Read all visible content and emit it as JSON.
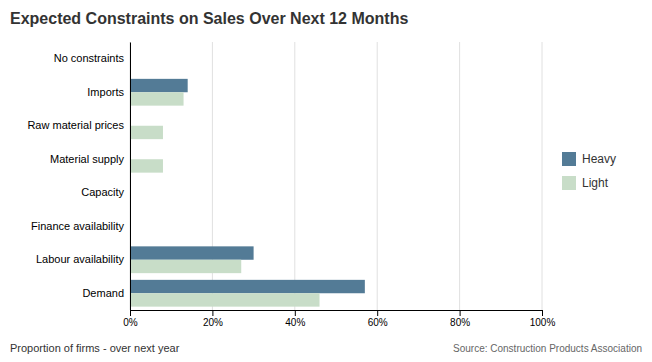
{
  "chart_data": {
    "type": "bar",
    "orientation": "horizontal",
    "title": "Expected Constraints on Sales Over Next 12 Months",
    "xlabel": "Proportion of firms - over next year",
    "source": "Source: Construction Products Association",
    "categories": [
      "Demand",
      "Labour availability",
      "Finance availability",
      "Capacity",
      "Material supply",
      "Raw material prices",
      "Imports",
      "No constraints"
    ],
    "series": [
      {
        "name": "Heavy",
        "color": "#537b96",
        "values": [
          57,
          30,
          0,
          0,
          0,
          0,
          14,
          0
        ]
      },
      {
        "name": "Light",
        "color": "#c8ddc8",
        "values": [
          46,
          27,
          0,
          0,
          8,
          8,
          13,
          0
        ]
      }
    ],
    "xlim": [
      0,
      100
    ],
    "xticks": [
      {
        "value": 0,
        "label": "0%"
      },
      {
        "value": 20,
        "label": "20%"
      },
      {
        "value": 40,
        "label": "40%"
      },
      {
        "value": 60,
        "label": "60%"
      },
      {
        "value": 80,
        "label": "80%"
      },
      {
        "value": 100,
        "label": "100%"
      }
    ],
    "grid": true,
    "legend": "right"
  }
}
